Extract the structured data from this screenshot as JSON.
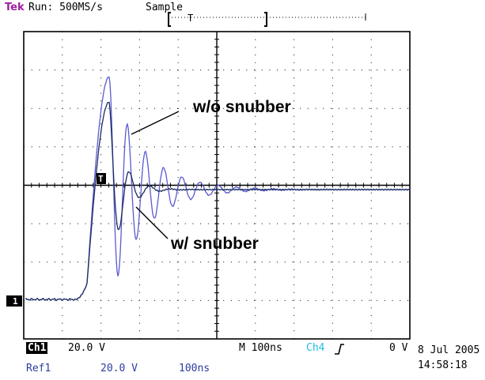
{
  "header": {
    "brand": "Tek",
    "run_status": "Run: 500MS/s",
    "acq_mode": "Sample",
    "trigger_marker": "T"
  },
  "annotations": {
    "without": "w/o snubber",
    "with": "w/ snubber"
  },
  "markers": {
    "trigger": "T",
    "ch1": "1"
  },
  "readout": {
    "ch1_label": "Ch1",
    "ch1_scale": "20.0 V",
    "timebase": "M 100ns",
    "trigger_source": "Ch4",
    "trigger_level": "0 V",
    "ref_label": "Ref1",
    "ref_scale": "20.0 V",
    "ref_time": "100ns",
    "date": "8 Jul 2005",
    "time": "14:58:18"
  },
  "colors": {
    "trace_ref": "#5a5ad0",
    "trace_ch1": "#1c2c60",
    "brand": "#a020a0",
    "ch4": "#20c0e0"
  }
}
